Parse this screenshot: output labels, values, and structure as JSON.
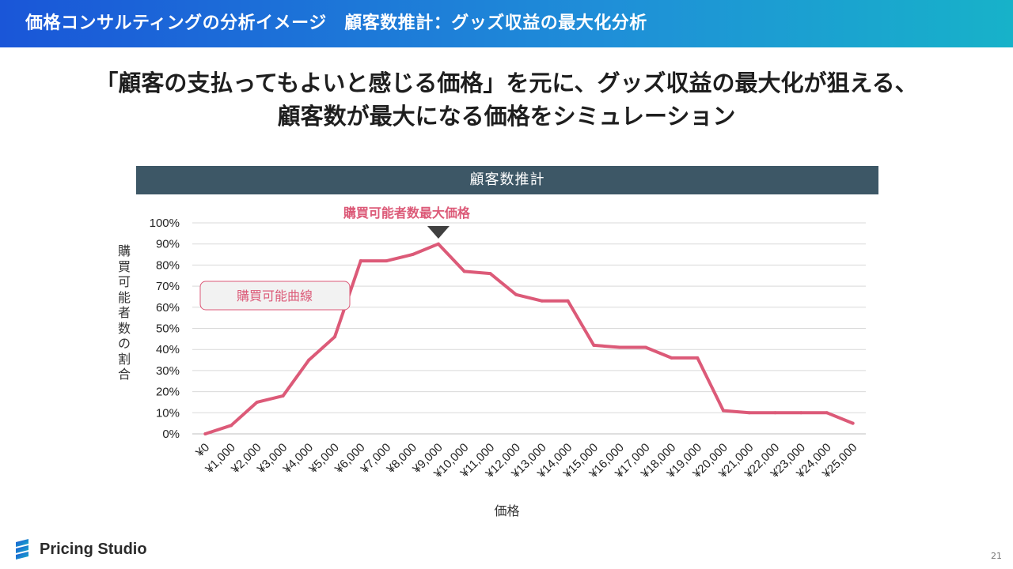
{
  "header": {
    "title": "価格コンサルティングの分析イメージ　顧客数推計：グッズ収益の最大化分析"
  },
  "headline": {
    "line1": "「顧客の支払ってもよいと感じる価格」を元に、グッズ収益の最大化が狙える、",
    "line2": "顧客数が最大になる価格をシミュレーション"
  },
  "chart_data": {
    "type": "line",
    "title": "顧客数推計",
    "xlabel": "価格",
    "ylabel": "購買可能者数の割合",
    "ylim": [
      0,
      100
    ],
    "yticks": [
      "0%",
      "10%",
      "20%",
      "30%",
      "40%",
      "50%",
      "60%",
      "70%",
      "80%",
      "90%",
      "100%"
    ],
    "categories": [
      "¥0",
      "¥1,000",
      "¥2,000",
      "¥3,000",
      "¥4,000",
      "¥5,000",
      "¥6,000",
      "¥7,000",
      "¥8,000",
      "¥9,000",
      "¥10,000",
      "¥11,000",
      "¥12,000",
      "¥13,000",
      "¥14,000",
      "¥15,000",
      "¥16,000",
      "¥17,000",
      "¥18,000",
      "¥19,000",
      "¥20,000",
      "¥21,000",
      "¥22,000",
      "¥23,000",
      "¥24,000",
      "¥25,000"
    ],
    "series": [
      {
        "name": "購買可能曲線",
        "color": "#dc5a78",
        "values": [
          0,
          4,
          15,
          18,
          35,
          46,
          82,
          82,
          85,
          90,
          77,
          76,
          66,
          63,
          63,
          42,
          41,
          41,
          36,
          36,
          11,
          10,
          10,
          10,
          10,
          5
        ]
      }
    ],
    "grid": true,
    "annotation": {
      "label": "購買可能者数最大価格",
      "category": "¥9,000",
      "color": "#dc5a78"
    },
    "legend": {
      "label": "購買可能曲線",
      "placement": "left"
    }
  },
  "footer": {
    "brand": "Pricing Studio",
    "page": "21"
  }
}
